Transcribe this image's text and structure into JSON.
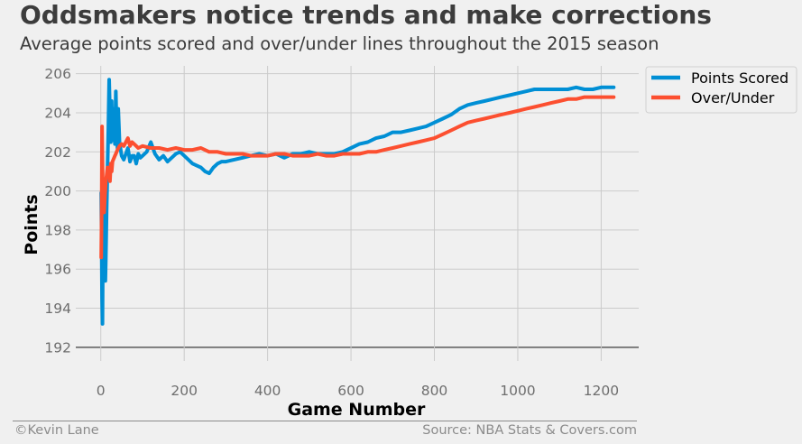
{
  "header": {
    "title": "Oddsmakers notice trends and make corrections",
    "subtitle": "Average points scored and over/under lines throughout the 2015 season"
  },
  "footer": {
    "credit": "©Kevin Lane",
    "source": "Source: NBA Stats & Covers.com"
  },
  "colors": {
    "background": "#f0f0f0",
    "grid": "#cbcbcb",
    "points_scored": "#008fd5",
    "over_under": "#fc4f30"
  },
  "chart_data": {
    "type": "line",
    "title": "Oddsmakers notice trends and make corrections",
    "subtitle": "Average points scored and over/under lines throughout the 2015 season",
    "xlabel": "Game Number",
    "ylabel": "Points",
    "xlim": [
      -60,
      1290
    ],
    "ylim": [
      191.3,
      206.4
    ],
    "x_ticks": [
      0,
      200,
      400,
      600,
      800,
      1000,
      1200
    ],
    "x_tick_labels": [
      "0",
      "200",
      "400",
      "600",
      "800",
      "1000",
      "1200"
    ],
    "y_ticks": [
      192,
      194,
      196,
      198,
      200,
      202,
      204,
      206
    ],
    "y_tick_labels": [
      "192",
      "194",
      "196",
      "198",
      "200",
      "202",
      "204",
      "206"
    ],
    "grid": true,
    "legend_position": "outside-top-right",
    "series": [
      {
        "name": "Points Scored",
        "color": "#008fd5",
        "x": [
          1,
          2,
          3,
          4,
          5,
          6,
          7,
          8,
          9,
          10,
          11,
          12,
          14,
          16,
          18,
          20,
          22,
          24,
          26,
          28,
          30,
          32,
          34,
          36,
          38,
          40,
          42,
          45,
          50,
          55,
          60,
          65,
          70,
          75,
          80,
          85,
          90,
          95,
          100,
          110,
          120,
          130,
          140,
          150,
          160,
          170,
          180,
          190,
          200,
          210,
          220,
          230,
          240,
          250,
          260,
          270,
          280,
          290,
          300,
          320,
          340,
          360,
          380,
          400,
          420,
          440,
          460,
          480,
          500,
          520,
          540,
          560,
          580,
          600,
          620,
          640,
          660,
          680,
          700,
          720,
          740,
          760,
          780,
          800,
          820,
          840,
          860,
          880,
          900,
          920,
          940,
          960,
          980,
          1000,
          1020,
          1040,
          1060,
          1080,
          1100,
          1120,
          1140,
          1160,
          1180,
          1200,
          1220,
          1230
        ],
        "y": [
          199.9,
          197.0,
          194.5,
          193.2,
          196.5,
          198.0,
          196.0,
          199.5,
          195.5,
          197.5,
          195.4,
          196.5,
          199.0,
          201.0,
          203.2,
          205.7,
          204.0,
          202.5,
          204.6,
          202.6,
          204.2,
          203.0,
          202.4,
          205.1,
          203.0,
          202.2,
          204.2,
          202.5,
          201.8,
          201.6,
          201.9,
          202.2,
          201.5,
          201.8,
          201.8,
          201.4,
          201.9,
          201.7,
          201.8,
          202.0,
          202.5,
          201.9,
          201.6,
          201.8,
          201.5,
          201.7,
          201.9,
          202.0,
          201.8,
          201.6,
          201.4,
          201.3,
          201.2,
          201.0,
          200.9,
          201.2,
          201.4,
          201.5,
          201.5,
          201.6,
          201.7,
          201.8,
          201.9,
          201.8,
          201.9,
          201.7,
          201.9,
          201.9,
          202.0,
          201.9,
          201.9,
          201.9,
          202.0,
          202.2,
          202.4,
          202.5,
          202.7,
          202.8,
          203.0,
          203.0,
          203.1,
          203.2,
          203.3,
          203.5,
          203.7,
          203.9,
          204.2,
          204.4,
          204.5,
          204.6,
          204.7,
          204.8,
          204.9,
          205.0,
          205.1,
          205.2,
          205.2,
          205.2,
          205.2,
          205.2,
          205.3,
          205.2,
          205.2,
          205.3,
          205.3,
          205.3
        ]
      },
      {
        "name": "Over/Under",
        "color": "#fc4f30",
        "x": [
          1,
          2,
          3,
          4,
          5,
          6,
          7,
          8,
          10,
          12,
          14,
          16,
          18,
          20,
          22,
          24,
          26,
          28,
          30,
          32,
          34,
          36,
          38,
          40,
          45,
          50,
          55,
          60,
          65,
          70,
          75,
          80,
          90,
          100,
          120,
          140,
          160,
          180,
          200,
          220,
          240,
          260,
          280,
          300,
          320,
          340,
          360,
          380,
          400,
          420,
          440,
          460,
          480,
          500,
          520,
          540,
          560,
          580,
          600,
          620,
          640,
          660,
          680,
          700,
          720,
          740,
          760,
          780,
          800,
          820,
          840,
          860,
          880,
          900,
          920,
          940,
          960,
          980,
          1000,
          1020,
          1040,
          1060,
          1080,
          1100,
          1120,
          1140,
          1160,
          1180,
          1200,
          1220,
          1230
        ],
        "y": [
          196.6,
          199.0,
          203.3,
          201.5,
          200.0,
          199.3,
          199.0,
          198.9,
          199.8,
          200.5,
          200.8,
          201.2,
          201.0,
          201.2,
          200.5,
          201.4,
          201.0,
          201.5,
          201.6,
          201.7,
          201.8,
          201.9,
          202.0,
          202.1,
          202.3,
          202.4,
          202.3,
          202.5,
          202.7,
          202.3,
          202.5,
          202.4,
          202.2,
          202.3,
          202.2,
          202.2,
          202.1,
          202.2,
          202.1,
          202.1,
          202.2,
          202.0,
          202.0,
          201.9,
          201.9,
          201.9,
          201.8,
          201.8,
          201.8,
          201.9,
          201.9,
          201.8,
          201.8,
          201.8,
          201.9,
          201.8,
          201.8,
          201.9,
          201.9,
          201.9,
          202.0,
          202.0,
          202.1,
          202.2,
          202.3,
          202.4,
          202.5,
          202.6,
          202.7,
          202.9,
          203.1,
          203.3,
          203.5,
          203.6,
          203.7,
          203.8,
          203.9,
          204.0,
          204.1,
          204.2,
          204.3,
          204.4,
          204.5,
          204.6,
          204.7,
          204.7,
          204.8,
          204.8,
          204.8,
          204.8,
          204.8
        ]
      }
    ]
  }
}
